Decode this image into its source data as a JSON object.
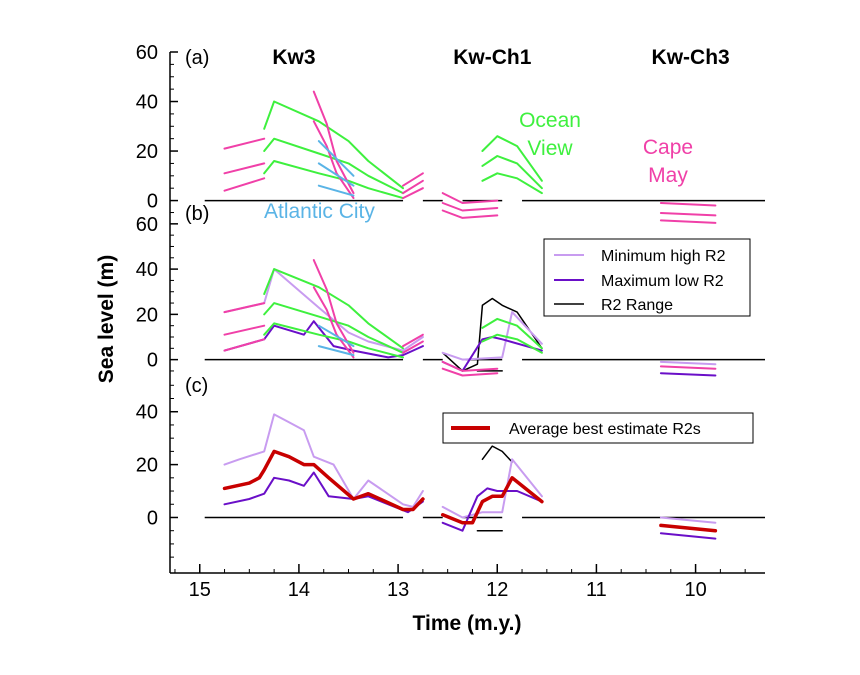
{
  "chart_data": {
    "type": "line",
    "ylabel": "Sea level (m)",
    "xlabel": "Time (m.y.)",
    "xlim": [
      15.3,
      9.3
    ],
    "x_ticks": [
      "15",
      "14",
      "13",
      "12",
      "11",
      "10"
    ],
    "section_titles": [
      {
        "text": "Kw3",
        "x": 14.05
      },
      {
        "text": "Kw-Ch1",
        "x": 12.05
      },
      {
        "text": "Kw-Ch3",
        "x": 10.05
      }
    ],
    "colors": {
      "atlantic_city": "#5ab4e6",
      "ocean_view": "#3ef03e",
      "cape_may": "#f040a8",
      "min_high": "#c89cf0",
      "max_low": "#6a0fc8",
      "range": "#000000",
      "average": "#c80000"
    },
    "annotations": {
      "ocean_view": "Ocean\nView",
      "cape_may": "Cape\nMay",
      "atlantic_city": "Atlantic City"
    },
    "legend_b": [
      {
        "label": "Minimum high R2",
        "series": "min_high"
      },
      {
        "label": "Maximum low R2",
        "series": "max_low"
      },
      {
        "label": "R2 Range",
        "series": "range"
      }
    ],
    "legend_c": [
      {
        "label": "Average best estimate R2s",
        "series": "average"
      }
    ],
    "panels": [
      {
        "label": "(a)",
        "ylim": [
          -3,
          60
        ],
        "y_ticks": [
          "0",
          "20",
          "40",
          "60"
        ],
        "series": [
          {
            "group": "cape_may",
            "x": [
              14.75,
              14.35
            ],
            "y": [
              21,
              25
            ]
          },
          {
            "group": "cape_may",
            "x": [
              14.75,
              14.35
            ],
            "y": [
              11,
              15
            ]
          },
          {
            "group": "cape_may",
            "x": [
              14.75,
              14.35
            ],
            "y": [
              4,
              9
            ]
          },
          {
            "group": "ocean_view",
            "x": [
              14.35,
              14.25,
              13.8,
              13.5,
              13.3,
              12.95
            ],
            "y": [
              29,
              40,
              32,
              24,
              16,
              5
            ]
          },
          {
            "group": "ocean_view",
            "x": [
              14.35,
              14.25,
              13.8,
              13.5,
              13.3,
              12.95
            ],
            "y": [
              20,
              25,
              19,
              15,
              10,
              3
            ]
          },
          {
            "group": "ocean_view",
            "x": [
              14.35,
              14.25,
              13.8,
              13.5,
              13.3,
              12.95
            ],
            "y": [
              11,
              16,
              11,
              8,
              5,
              1
            ]
          },
          {
            "group": "cape_may",
            "x": [
              13.85,
              13.72,
              13.62,
              13.45
            ],
            "y": [
              44,
              31,
              16,
              3
            ]
          },
          {
            "group": "cape_may",
            "x": [
              13.85,
              13.72,
              13.62,
              13.45
            ],
            "y": [
              32,
              22,
              11,
              1
            ]
          },
          {
            "group": "atlantic_city",
            "x": [
              13.8,
              13.45
            ],
            "y": [
              24,
              10
            ]
          },
          {
            "group": "atlantic_city",
            "x": [
              13.8,
              13.45
            ],
            "y": [
              15,
              6
            ]
          },
          {
            "group": "atlantic_city",
            "x": [
              13.8,
              13.45
            ],
            "y": [
              6,
              2
            ]
          },
          {
            "group": "cape_may",
            "x": [
              12.95,
              12.75
            ],
            "y": [
              6,
              11
            ]
          },
          {
            "group": "cape_may",
            "x": [
              12.95,
              12.75
            ],
            "y": [
              3,
              8
            ]
          },
          {
            "group": "cape_may",
            "x": [
              12.95,
              12.75
            ],
            "y": [
              1,
              5
            ]
          },
          {
            "group": "cape_may",
            "x": [
              12.55,
              12.35,
              12.0
            ],
            "y": [
              3,
              -1,
              0
            ]
          },
          {
            "group": "cape_may",
            "x": [
              12.55,
              12.35,
              12.0
            ],
            "y": [
              -1,
              -4,
              -3
            ]
          },
          {
            "group": "cape_may",
            "x": [
              12.55,
              12.35,
              12.0
            ],
            "y": [
              -4,
              -7,
              -6
            ]
          },
          {
            "group": "ocean_view",
            "x": [
              12.15,
              12.0,
              11.8,
              11.55
            ],
            "y": [
              20,
              26,
              22,
              8
            ]
          },
          {
            "group": "ocean_view",
            "x": [
              12.15,
              12.0,
              11.8,
              11.55
            ],
            "y": [
              14,
              18,
              15,
              5
            ]
          },
          {
            "group": "ocean_view",
            "x": [
              12.15,
              12.0,
              11.8,
              11.55
            ],
            "y": [
              8,
              11,
              9,
              3
            ]
          },
          {
            "group": "cape_may",
            "x": [
              10.35,
              9.8
            ],
            "y": [
              -1,
              -2
            ]
          },
          {
            "group": "cape_may",
            "x": [
              10.35,
              9.8
            ],
            "y": [
              -5,
              -6
            ]
          },
          {
            "group": "cape_may",
            "x": [
              10.35,
              9.8
            ],
            "y": [
              -8,
              -9
            ]
          }
        ]
      },
      {
        "label": "(b)",
        "ylim": [
          -9,
          67
        ],
        "y_ticks": [
          "0",
          "20",
          "40",
          "60"
        ],
        "series": [
          {
            "group": "min_high",
            "x": [
              14.75,
              14.35,
              14.25,
              13.8,
              13.5,
              13.3,
              12.95,
              12.75
            ],
            "y": [
              21,
              25,
              40,
              23,
              12,
              8,
              4,
              10
            ]
          },
          {
            "group": "max_low",
            "x": [
              14.75,
              14.35,
              14.25,
              13.95,
              13.85,
              13.65,
              13.45,
              13.1,
              12.95,
              12.75
            ],
            "y": [
              4,
              9,
              15,
              11,
              17,
              6,
              4,
              1,
              2,
              6
            ]
          },
          {
            "group": "cape_may",
            "x": [
              14.75,
              14.35
            ],
            "y": [
              21,
              25
            ]
          },
          {
            "group": "cape_may",
            "x": [
              14.75,
              14.35
            ],
            "y": [
              11,
              15
            ]
          },
          {
            "group": "cape_may",
            "x": [
              14.75,
              14.35
            ],
            "y": [
              4,
              9
            ]
          },
          {
            "group": "ocean_view",
            "x": [
              14.35,
              14.25,
              13.8,
              13.5,
              13.3,
              12.95
            ],
            "y": [
              29,
              40,
              32,
              24,
              16,
              5
            ]
          },
          {
            "group": "ocean_view",
            "x": [
              14.35,
              14.25,
              13.8,
              13.5,
              13.3,
              12.95
            ],
            "y": [
              20,
              25,
              19,
              15,
              10,
              3
            ]
          },
          {
            "group": "ocean_view",
            "x": [
              14.35,
              14.25,
              13.8,
              13.5,
              13.3,
              12.95
            ],
            "y": [
              11,
              16,
              11,
              8,
              5,
              1
            ]
          },
          {
            "group": "cape_may",
            "x": [
              13.85,
              13.72,
              13.62,
              13.45
            ],
            "y": [
              44,
              31,
              16,
              3
            ]
          },
          {
            "group": "cape_may",
            "x": [
              13.85,
              13.72,
              13.62,
              13.45
            ],
            "y": [
              32,
              22,
              11,
              1
            ]
          },
          {
            "group": "atlantic_city",
            "x": [
              13.8,
              13.45
            ],
            "y": [
              15,
              6
            ]
          },
          {
            "group": "atlantic_city",
            "x": [
              13.8,
              13.45
            ],
            "y": [
              6,
              2
            ]
          },
          {
            "group": "cape_may",
            "x": [
              12.95,
              12.75
            ],
            "y": [
              6,
              11
            ]
          },
          {
            "group": "cape_may",
            "x": [
              12.95,
              12.75
            ],
            "y": [
              3,
              8
            ]
          },
          {
            "group": "range",
            "x": [
              12.55,
              12.35,
              12.2,
              12.15,
              12.05,
              11.95,
              11.8,
              11.55
            ],
            "y": [
              3,
              -5,
              -2,
              24,
              27,
              24,
              21,
              5
            ]
          },
          {
            "group": "range",
            "x": [
              12.2,
              11.95
            ],
            "y": [
              -5,
              -5
            ]
          },
          {
            "group": "min_high",
            "x": [
              12.55,
              12.35,
              11.95,
              11.85,
              11.55
            ],
            "y": [
              3,
              0,
              1,
              21,
              7
            ]
          },
          {
            "group": "max_low",
            "x": [
              12.55,
              12.35,
              12.15,
              12.05,
              11.95,
              11.55
            ],
            "y": [
              -1,
              -5,
              9,
              10,
              9,
              4
            ]
          },
          {
            "group": "ocean_view",
            "x": [
              12.15,
              12.0,
              11.8,
              11.55
            ],
            "y": [
              14,
              18,
              15,
              5
            ]
          },
          {
            "group": "ocean_view",
            "x": [
              12.15,
              12.0,
              11.8,
              11.55
            ],
            "y": [
              8,
              11,
              9,
              3
            ]
          },
          {
            "group": "cape_may",
            "x": [
              12.55,
              12.35,
              12.0
            ],
            "y": [
              -1,
              -5,
              -4
            ]
          },
          {
            "group": "cape_may",
            "x": [
              12.55,
              12.35,
              12.0
            ],
            "y": [
              -4,
              -7,
              -6
            ]
          },
          {
            "group": "min_high",
            "x": [
              10.35,
              9.8
            ],
            "y": [
              -1,
              -2
            ]
          },
          {
            "group": "cape_may",
            "x": [
              10.35,
              9.8
            ],
            "y": [
              -3,
              -4
            ]
          },
          {
            "group": "max_low",
            "x": [
              10.35,
              9.8
            ],
            "y": [
              -6,
              -7
            ]
          }
        ]
      },
      {
        "label": "(c)",
        "ylim": [
          -21,
          52
        ],
        "y_ticks": [
          "0",
          "20",
          "40"
        ],
        "series": [
          {
            "group": "min_high",
            "x": [
              14.75,
              14.6,
              14.35,
              14.25,
              14.1,
              13.95,
              13.85,
              13.65,
              13.45,
              13.3,
              12.95,
              12.85,
              12.75
            ],
            "y": [
              20,
              22,
              25,
              39,
              36,
              33,
              23,
              20,
              7,
              14,
              5,
              4,
              10
            ]
          },
          {
            "group": "max_low",
            "x": [
              14.75,
              14.5,
              14.35,
              14.25,
              14.1,
              13.95,
              13.85,
              13.7,
              13.45,
              13.3,
              12.9,
              12.75
            ],
            "y": [
              5,
              7,
              9,
              15,
              14,
              12,
              17,
              8,
              7,
              8,
              2,
              6
            ]
          },
          {
            "group": "average",
            "x": [
              14.75,
              14.5,
              14.4,
              14.35,
              14.25,
              14.1,
              13.95,
              13.85,
              13.7,
              13.45,
              13.3,
              12.95,
              12.85,
              12.75
            ],
            "y": [
              11,
              13,
              15,
              18,
              25,
              23,
              20,
              20,
              15,
              7,
              9,
              3,
              3,
              7
            ]
          },
          {
            "group": "range",
            "x": [
              12.15,
              12.05,
              11.95,
              11.85
            ],
            "y": [
              22,
              27,
              25,
              21
            ]
          },
          {
            "group": "range",
            "x": [
              12.2,
              11.95
            ],
            "y": [
              -5,
              -5
            ]
          },
          {
            "group": "min_high",
            "x": [
              12.55,
              12.35,
              12.15,
              11.95,
              11.85,
              11.55
            ],
            "y": [
              4,
              0,
              2,
              2,
              22,
              8
            ]
          },
          {
            "group": "max_low",
            "x": [
              12.55,
              12.35,
              12.2,
              12.1,
              12.0,
              11.8,
              11.55
            ],
            "y": [
              -2,
              -5,
              8,
              11,
              10,
              10,
              6
            ]
          },
          {
            "group": "average",
            "x": [
              12.55,
              12.35,
              12.25,
              12.15,
              12.05,
              11.95,
              11.85,
              11.55
            ],
            "y": [
              1,
              -2,
              -2,
              6,
              8,
              8,
              15,
              6
            ]
          },
          {
            "group": "min_high",
            "x": [
              10.35,
              9.8
            ],
            "y": [
              0,
              -2
            ]
          },
          {
            "group": "average",
            "x": [
              10.35,
              9.8
            ],
            "y": [
              -3,
              -5
            ]
          },
          {
            "group": "max_low",
            "x": [
              10.35,
              9.8
            ],
            "y": [
              -6,
              -8
            ]
          }
        ]
      }
    ]
  }
}
